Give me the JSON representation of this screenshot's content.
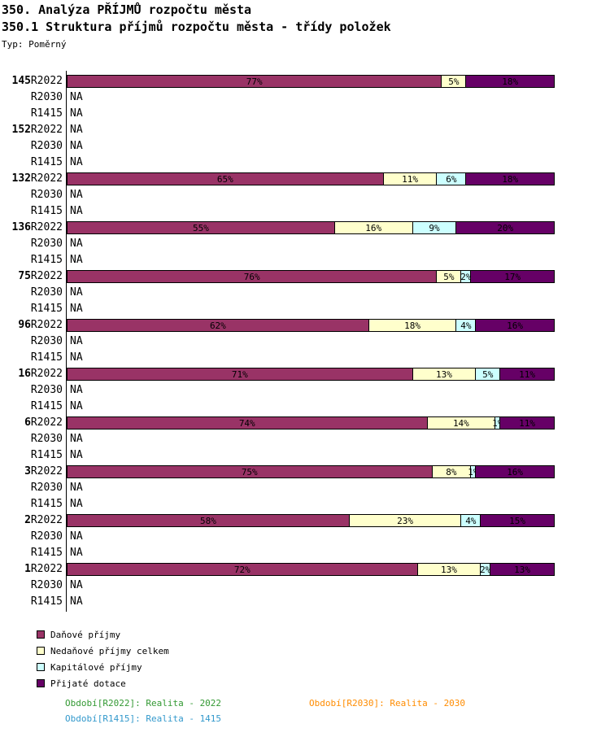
{
  "header": {
    "title": "350. Analýza PŘÍJMŮ rozpočtu města",
    "subtitle": "350.1 Struktura příjmů rozpočtu města - třídy položek",
    "type_label": "Typ: Poměrný"
  },
  "colors": {
    "series": [
      "#993366",
      "#FFFFCC",
      "#CCFFFF",
      "#660066"
    ],
    "axis": "#000000",
    "bar_border": "#000000"
  },
  "chart_data": {
    "type": "bar",
    "orientation": "horizontal",
    "stacked": true,
    "unit": "%",
    "xlim": [
      0,
      100
    ],
    "grid": false,
    "na_text": "NA",
    "row_keys": [
      "R2022",
      "R2030",
      "R1415"
    ],
    "series_labels": [
      "Daňové příjmy",
      "Nedaňové příjmy celkem",
      "Kapitálové příjmy",
      "Přijaté dotace"
    ],
    "groups": [
      {
        "label": "145",
        "rows": [
          {
            "key": "R2022",
            "values": [
              77,
              5,
              0,
              18
            ]
          },
          {
            "key": "R2030",
            "na": true
          },
          {
            "key": "R1415",
            "na": true
          }
        ]
      },
      {
        "label": "152",
        "rows": [
          {
            "key": "R2022",
            "na": true
          },
          {
            "key": "R2030",
            "na": true
          },
          {
            "key": "R1415",
            "na": true
          }
        ]
      },
      {
        "label": "132",
        "rows": [
          {
            "key": "R2022",
            "values": [
              65,
              11,
              6,
              18
            ]
          },
          {
            "key": "R2030",
            "na": true
          },
          {
            "key": "R1415",
            "na": true
          }
        ]
      },
      {
        "label": "136",
        "rows": [
          {
            "key": "R2022",
            "values": [
              55,
              16,
              9,
              20
            ]
          },
          {
            "key": "R2030",
            "na": true
          },
          {
            "key": "R1415",
            "na": true
          }
        ]
      },
      {
        "label": "75",
        "rows": [
          {
            "key": "R2022",
            "values": [
              76,
              5,
              2,
              17
            ]
          },
          {
            "key": "R2030",
            "na": true
          },
          {
            "key": "R1415",
            "na": true
          }
        ]
      },
      {
        "label": "96",
        "rows": [
          {
            "key": "R2022",
            "values": [
              62,
              18,
              4,
              16
            ]
          },
          {
            "key": "R2030",
            "na": true
          },
          {
            "key": "R1415",
            "na": true
          }
        ]
      },
      {
        "label": "16",
        "rows": [
          {
            "key": "R2022",
            "values": [
              71,
              13,
              5,
              11
            ]
          },
          {
            "key": "R2030",
            "na": true
          },
          {
            "key": "R1415",
            "na": true
          }
        ]
      },
      {
        "label": "6",
        "rows": [
          {
            "key": "R2022",
            "values": [
              74,
              14,
              1,
              11
            ]
          },
          {
            "key": "R2030",
            "na": true
          },
          {
            "key": "R1415",
            "na": true
          }
        ]
      },
      {
        "label": "3",
        "rows": [
          {
            "key": "R2022",
            "values": [
              75,
              8,
              1,
              16
            ]
          },
          {
            "key": "R2030",
            "na": true
          },
          {
            "key": "R1415",
            "na": true
          }
        ]
      },
      {
        "label": "2",
        "rows": [
          {
            "key": "R2022",
            "values": [
              58,
              23,
              4,
              15
            ]
          },
          {
            "key": "R2030",
            "na": true
          },
          {
            "key": "R1415",
            "na": true
          }
        ]
      },
      {
        "label": "1",
        "rows": [
          {
            "key": "R2022",
            "values": [
              72,
              13,
              2,
              13
            ]
          },
          {
            "key": "R2030",
            "na": true
          },
          {
            "key": "R1415",
            "na": true
          }
        ]
      }
    ]
  },
  "legend": {
    "items": [
      {
        "label": "Daňové příjmy",
        "color": "#993366"
      },
      {
        "label": "Nedaňové příjmy celkem",
        "color": "#FFFFCC"
      },
      {
        "label": "Kapitálové příjmy",
        "color": "#CCFFFF"
      },
      {
        "label": "Přijaté dotace",
        "color": "#660066"
      }
    ]
  },
  "footer": {
    "notes": [
      {
        "id": "period-note-r2022",
        "text": "Období[R2022]: Realita - 2022",
        "color": "#339933"
      },
      {
        "id": "period-note-r2030",
        "text": "Období[R2030]: Realita - 2030",
        "color": "#FF8C00"
      },
      {
        "id": "period-note-r1415",
        "text": "Období[R1415]: Realita - 1415",
        "color": "#3399CC"
      }
    ]
  }
}
